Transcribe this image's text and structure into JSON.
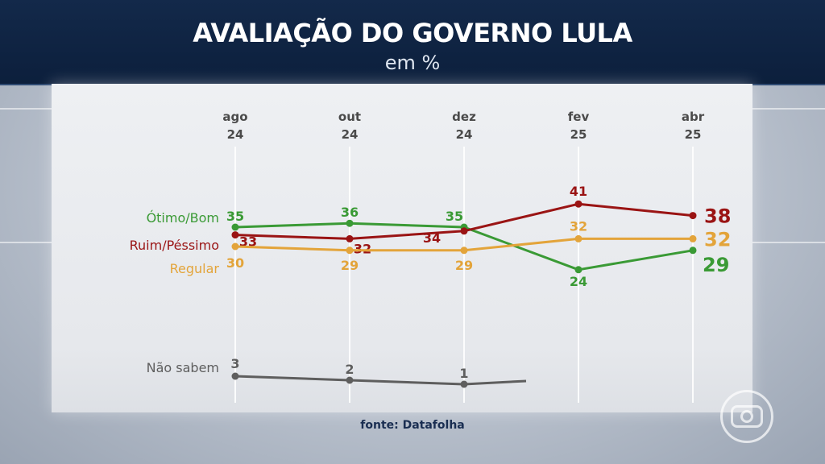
{
  "header": {
    "title": "AVALIAÇÃO DO GOVERNO LULA",
    "subtitle": "em %"
  },
  "source": "fonte: Datafolha",
  "chart_data": {
    "type": "line",
    "categories": [
      {
        "month": "ago",
        "year": "24"
      },
      {
        "month": "out",
        "year": "24"
      },
      {
        "month": "dez",
        "year": "24"
      },
      {
        "month": "fev",
        "year": "25"
      },
      {
        "month": "abr",
        "year": "25"
      }
    ],
    "series": [
      {
        "name": "Ótimo/Bom",
        "color": "#3a9a35",
        "values": [
          35,
          36,
          35,
          24,
          29
        ]
      },
      {
        "name": "Ruim/Péssimo",
        "color": "#9a1414",
        "values": [
          33,
          32,
          34,
          41,
          38
        ]
      },
      {
        "name": "Regular",
        "color": "#e3a43a",
        "values": [
          30,
          29,
          29,
          32,
          32
        ]
      },
      {
        "name": "Não sabem",
        "color": "#5e5e5e",
        "values": [
          3,
          2,
          1,
          null,
          null
        ]
      }
    ],
    "legend_placement": "left of first data point",
    "grid": "vertical lines at each category"
  }
}
